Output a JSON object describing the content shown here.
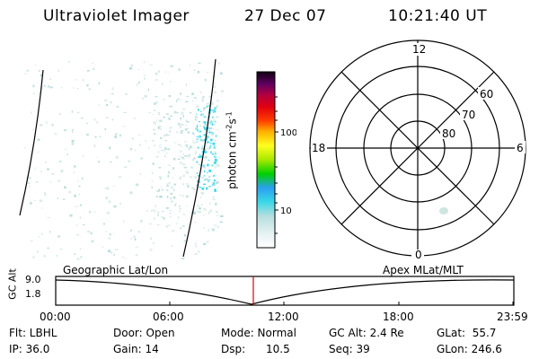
{
  "header": {
    "title": "Ultraviolet Imager",
    "date": "27 Dec 07",
    "time": "10:21:40 UT"
  },
  "colorbar": {
    "unit_prefix": "photon cm",
    "unit_exp1": "-2",
    "unit_mid": "s",
    "unit_exp2": "-1",
    "tick_100": "100",
    "tick_10": "10"
  },
  "polar": {
    "mlt_top": "12",
    "mlt_bottom": "0",
    "mlt_left": "18",
    "mlt_right": "6",
    "lat_60": "60",
    "lat_70": "70",
    "lat_80": "80"
  },
  "timeline": {
    "axis_label": "GC Alt",
    "y_top": "9.0",
    "y_bottom": "1.8",
    "left_title": "Geographic Lat/Lon",
    "right_title": "Apex MLat/MLT",
    "ticks": [
      "00:00",
      "06:00",
      "12:00",
      "18:00",
      "23:59"
    ]
  },
  "info": {
    "flt": "Flt: LBHL",
    "ip": "IP: 36.0",
    "door": "Door: Open",
    "gain": "Gain: 14",
    "mode": "Mode: Normal",
    "dsp": "Dsp:      10.5",
    "gcalt": "GC Alt: 2.4 Re",
    "seq": "Seq: 39",
    "glat": "GLat:  55.7",
    "glon": "GLon: 246.6"
  }
}
